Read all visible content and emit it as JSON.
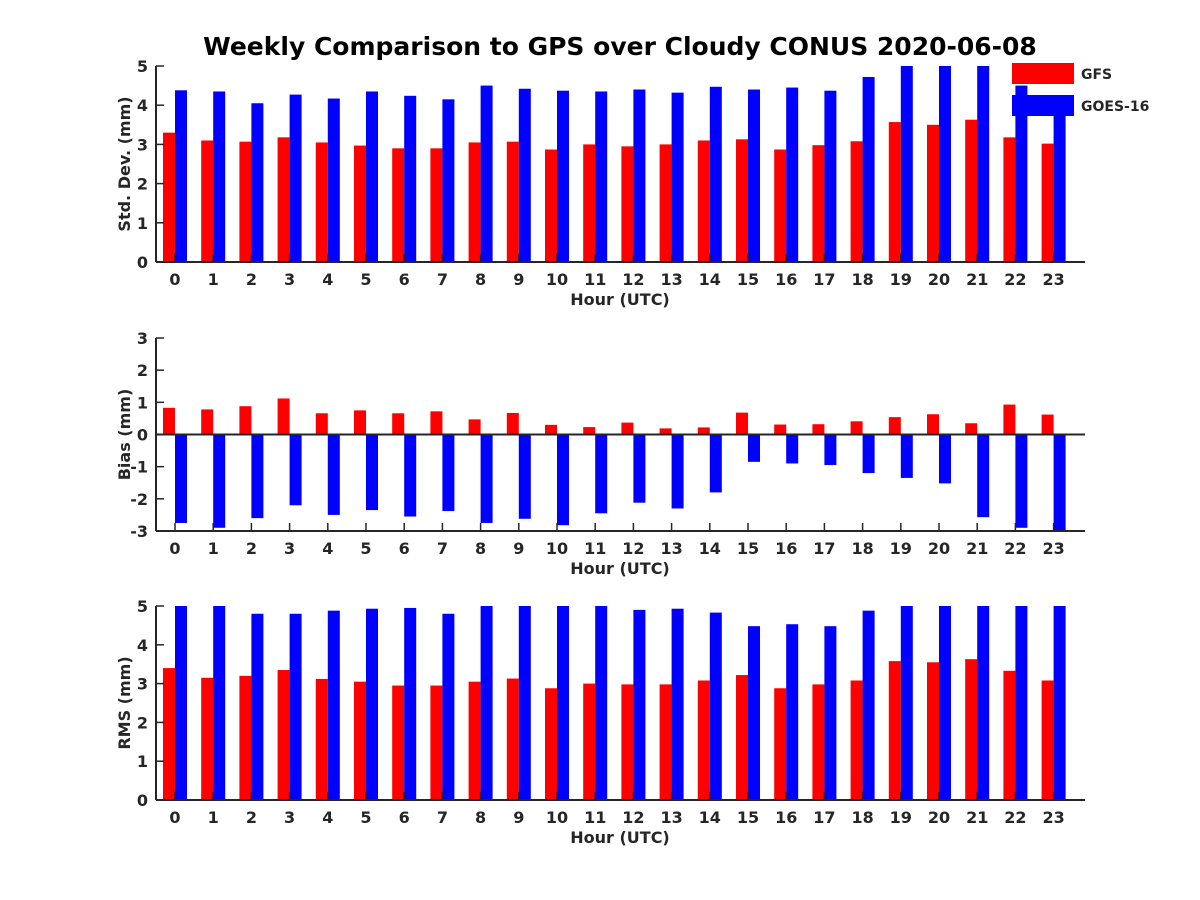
{
  "title": "Weekly Comparison to GPS over Cloudy CONUS 2020-06-08",
  "legend": [
    {
      "name": "GFS",
      "color": "#ff0000"
    },
    {
      "name": "GOES-16",
      "color": "#0000ff"
    }
  ],
  "chart_data": [
    {
      "type": "bar",
      "xlabel": "Hour (UTC)",
      "ylabel": "Std. Dev. (mm)",
      "ylim": [
        0,
        5
      ],
      "yticks": [
        0,
        1,
        2,
        3,
        4,
        5
      ],
      "categories": [
        "0",
        "1",
        "2",
        "3",
        "4",
        "5",
        "6",
        "7",
        "8",
        "9",
        "10",
        "11",
        "12",
        "13",
        "14",
        "15",
        "16",
        "17",
        "18",
        "19",
        "20",
        "21",
        "22",
        "23"
      ],
      "series": [
        {
          "name": "GFS",
          "color": "#ff0000",
          "values": [
            3.3,
            3.1,
            3.07,
            3.18,
            3.05,
            2.97,
            2.9,
            2.9,
            3.05,
            3.07,
            2.87,
            3.0,
            2.95,
            3.0,
            3.1,
            3.13,
            2.87,
            2.98,
            3.08,
            3.57,
            3.5,
            3.63,
            3.18,
            3.02
          ]
        },
        {
          "name": "GOES-16",
          "color": "#0000ff",
          "values": [
            4.38,
            4.35,
            4.05,
            4.27,
            4.17,
            4.35,
            4.24,
            4.15,
            4.5,
            4.42,
            4.37,
            4.35,
            4.4,
            4.32,
            4.47,
            4.4,
            4.45,
            4.37,
            4.72,
            5.0,
            5.0,
            5.0,
            4.5,
            3.8
          ]
        }
      ]
    },
    {
      "type": "bar",
      "xlabel": "Hour (UTC)",
      "ylabel": "Bias (mm)",
      "ylim": [
        -3,
        3
      ],
      "yticks": [
        -3,
        -2,
        -1,
        0,
        1,
        2,
        3
      ],
      "categories": [
        "0",
        "1",
        "2",
        "3",
        "4",
        "5",
        "6",
        "7",
        "8",
        "9",
        "10",
        "11",
        "12",
        "13",
        "14",
        "15",
        "16",
        "17",
        "18",
        "19",
        "20",
        "21",
        "22",
        "23"
      ],
      "series": [
        {
          "name": "GFS",
          "color": "#ff0000",
          "values": [
            0.83,
            0.78,
            0.88,
            1.12,
            0.66,
            0.75,
            0.66,
            0.72,
            0.47,
            0.67,
            0.3,
            0.23,
            0.37,
            0.19,
            0.22,
            0.68,
            0.31,
            0.32,
            0.41,
            0.54,
            0.63,
            0.35,
            0.93,
            0.62
          ]
        },
        {
          "name": "GOES-16",
          "color": "#0000ff",
          "values": [
            -2.75,
            -2.9,
            -2.6,
            -2.2,
            -2.5,
            -2.35,
            -2.55,
            -2.38,
            -2.75,
            -2.62,
            -2.82,
            -2.45,
            -2.12,
            -2.3,
            -1.8,
            -0.85,
            -0.9,
            -0.95,
            -1.2,
            -1.35,
            -1.52,
            -2.57,
            -2.9,
            -3.0
          ]
        }
      ]
    },
    {
      "type": "bar",
      "xlabel": "Hour (UTC)",
      "ylabel": "RMS (mm)",
      "ylim": [
        0,
        5
      ],
      "yticks": [
        0,
        1,
        2,
        3,
        4,
        5
      ],
      "categories": [
        "0",
        "1",
        "2",
        "3",
        "4",
        "5",
        "6",
        "7",
        "8",
        "9",
        "10",
        "11",
        "12",
        "13",
        "14",
        "15",
        "16",
        "17",
        "18",
        "19",
        "20",
        "21",
        "22",
        "23"
      ],
      "series": [
        {
          "name": "GFS",
          "color": "#ff0000",
          "values": [
            3.4,
            3.15,
            3.2,
            3.35,
            3.12,
            3.05,
            2.95,
            2.95,
            3.05,
            3.13,
            2.88,
            3.0,
            2.98,
            2.98,
            3.08,
            3.22,
            2.88,
            2.98,
            3.08,
            3.58,
            3.55,
            3.63,
            3.33,
            3.08
          ]
        },
        {
          "name": "GOES-16",
          "color": "#0000ff",
          "values": [
            5.0,
            5.0,
            4.8,
            4.8,
            4.88,
            4.93,
            4.95,
            4.8,
            5.0,
            5.0,
            5.0,
            5.0,
            4.9,
            4.93,
            4.83,
            4.48,
            4.53,
            4.48,
            4.88,
            5.0,
            5.0,
            5.0,
            5.0,
            5.0
          ]
        }
      ]
    }
  ]
}
